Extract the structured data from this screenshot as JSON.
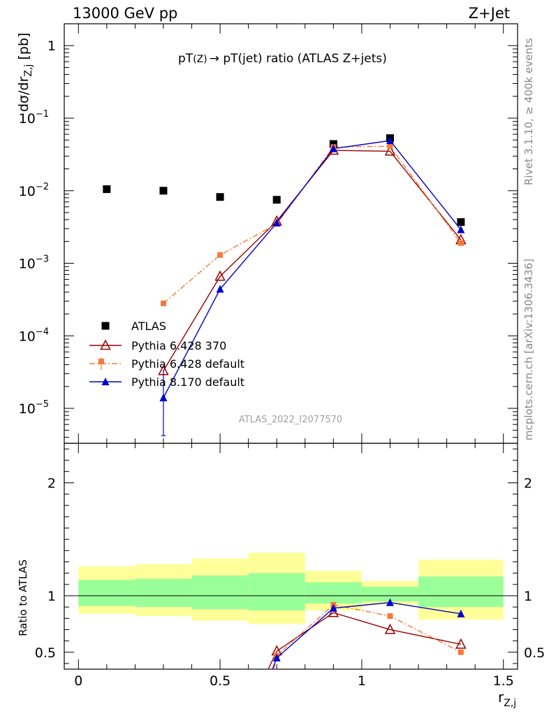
{
  "header": {
    "left": "13000 GeV pp",
    "right": "Z+Jet"
  },
  "side": {
    "rivet": "Rivet 3.1.10, ≥ 400k events",
    "mcplots": "mcplots.cern.ch [arXiv:1306.3436]"
  },
  "chart_data": [
    {
      "type": "scatter",
      "title_main": "pT",
      "title_sub1": "(Z)",
      "title_arrow": "→",
      "title_rest": " pT(jet) ratio (ATLAS Z+jets)",
      "ylabel_main": "dσ/dr",
      "ylabel_sub": "Z,j",
      "ylabel_unit": " [pb]",
      "yscale": "log",
      "ylim": [
        3.3e-06,
        2.0
      ],
      "xlim": [
        -0.05,
        1.55
      ],
      "yticks": [
        {
          "v": 1,
          "base": "1",
          "exp": ""
        },
        {
          "v": 0.1,
          "base": "10",
          "exp": "−1"
        },
        {
          "v": 0.01,
          "base": "10",
          "exp": "−2"
        },
        {
          "v": 0.001,
          "base": "10",
          "exp": "−3"
        },
        {
          "v": 0.0001,
          "base": "10",
          "exp": "−4"
        },
        {
          "v": 1e-05,
          "base": "10",
          "exp": "−5"
        }
      ],
      "watermark": "ATLAS_2022_I2077570",
      "legend_position": "bottom-left",
      "series": [
        {
          "name": "ATLAS",
          "color": "#000000",
          "marker": "square",
          "x": [
            0.1,
            0.3,
            0.5,
            0.7,
            0.9,
            1.1,
            1.35
          ],
          "y": [
            0.0105,
            0.01,
            0.0082,
            0.0075,
            0.044,
            0.053,
            0.0037
          ]
        },
        {
          "name": "Pythia 6.428 370",
          "color": "#990000",
          "marker": "open-triangle",
          "dash": "",
          "x": [
            0.3,
            0.5,
            0.7,
            0.9,
            1.1,
            1.35
          ],
          "y": [
            3.3e-05,
            0.00066,
            0.0038,
            0.036,
            0.035,
            0.0021
          ]
        },
        {
          "name": "Pythia 6.428 default",
          "color": "#f5793a",
          "marker": "square-small",
          "dash": "8,3,2,3",
          "x": [
            0.3,
            0.5,
            0.7,
            0.9,
            1.1,
            1.35
          ],
          "y": [
            0.00028,
            0.0013,
            0.0035,
            0.04,
            0.041,
            0.0019
          ]
        },
        {
          "name": "Pythia 8.170 default",
          "color": "#0000cc",
          "marker": "triangle",
          "dash": "",
          "x": [
            0.3,
            0.5,
            0.7,
            0.9,
            1.1,
            1.35
          ],
          "y": [
            1.4e-05,
            0.00044,
            0.0036,
            0.038,
            0.049,
            0.0029
          ]
        }
      ]
    },
    {
      "type": "scatter",
      "ylabel": "Ratio to ATLAS",
      "xlabel_main": "r",
      "xlabel_sub": "Z,j",
      "ylim": [
        0.35,
        2.35
      ],
      "xlim": [
        -0.05,
        1.55
      ],
      "yticks": [
        "0.5",
        "1",
        "2"
      ],
      "xticks": [
        "0",
        "0.5",
        "1",
        "1.5"
      ],
      "bands": [
        {
          "x0": 0.0,
          "x1": 0.2,
          "outer": [
            0.84,
            1.26
          ],
          "inner": [
            0.91,
            1.14
          ]
        },
        {
          "x0": 0.2,
          "x1": 0.4,
          "outer": [
            0.82,
            1.28
          ],
          "inner": [
            0.9,
            1.15
          ]
        },
        {
          "x0": 0.4,
          "x1": 0.6,
          "outer": [
            0.78,
            1.33
          ],
          "inner": [
            0.88,
            1.18
          ]
        },
        {
          "x0": 0.6,
          "x1": 0.8,
          "outer": [
            0.75,
            1.38
          ],
          "inner": [
            0.87,
            1.2
          ]
        },
        {
          "x0": 0.8,
          "x1": 1.0,
          "outer": [
            0.87,
            1.22
          ],
          "inner": [
            0.93,
            1.12
          ]
        },
        {
          "x0": 1.0,
          "x1": 1.2,
          "outer": [
            0.92,
            1.13
          ],
          "inner": [
            0.95,
            1.08
          ]
        },
        {
          "x0": 1.2,
          "x1": 1.5,
          "outer": [
            0.79,
            1.32
          ],
          "inner": [
            0.9,
            1.17
          ]
        }
      ],
      "series": [
        {
          "name": "Pythia 6.428 370",
          "color": "#990000",
          "x": [
            0.7,
            0.9,
            1.1,
            1.35
          ],
          "y": [
            0.51,
            0.85,
            0.7,
            0.57
          ],
          "below_x": 0.67
        },
        {
          "name": "Pythia 6.428 default",
          "color": "#f5793a",
          "x": [
            0.7,
            0.9,
            1.1,
            1.35
          ],
          "y": [
            0.47,
            0.92,
            0.82,
            0.5
          ],
          "below_x": 0.69
        },
        {
          "name": "Pythia 8.170 default",
          "color": "#0000cc",
          "x": [
            0.7,
            0.9,
            1.1,
            1.35
          ],
          "y": [
            0.45,
            0.89,
            0.94,
            0.84
          ],
          "below_x": 0.685
        }
      ]
    }
  ]
}
